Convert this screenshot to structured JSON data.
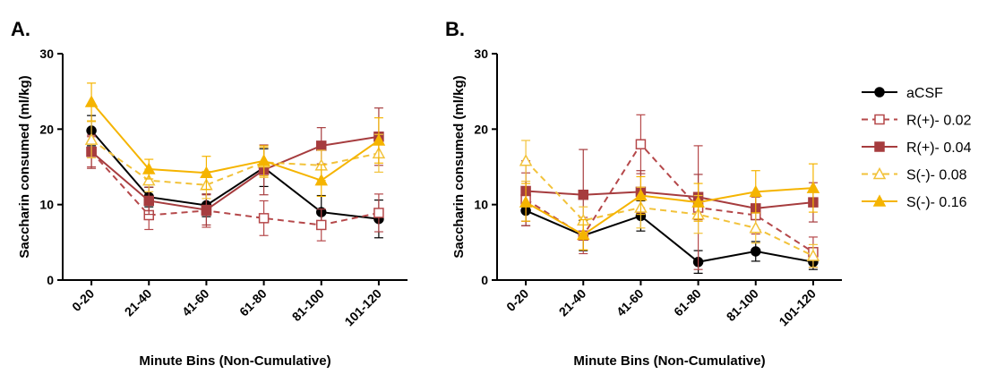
{
  "chart_data": [
    {
      "panel_label": "A.",
      "type": "line",
      "xlabel": "Minute Bins (Non-Cumulative)",
      "ylabel": "Saccharin consumed (ml/kg)",
      "categories": [
        "0-20",
        "21-40",
        "41-60",
        "61-80",
        "81-100",
        "101-120"
      ],
      "ylim": [
        0,
        30
      ],
      "yticks": [
        "0",
        "10",
        "20",
        "30"
      ],
      "grid": false,
      "series": [
        {
          "name": "aCSF",
          "color": "#000000",
          "marker": "circle-filled",
          "dash": "solid",
          "values": [
            19.8,
            11.0,
            9.9,
            14.9,
            9.0,
            8.1
          ],
          "errors": [
            2.0,
            1.3,
            1.5,
            2.5,
            2.2,
            2.5
          ]
        },
        {
          "name": "R(+)- 0.02",
          "color": "#b5484a",
          "marker": "square-open",
          "dash": "dashed",
          "values": [
            17.0,
            8.6,
            9.2,
            8.2,
            7.3,
            8.9
          ],
          "errors": [
            2.0,
            1.9,
            2.2,
            2.3,
            2.1,
            2.5
          ]
        },
        {
          "name": "R(+)- 0.04",
          "color": "#a63c3e",
          "marker": "square-filled",
          "dash": "solid",
          "values": [
            17.0,
            10.5,
            9.3,
            14.6,
            17.8,
            19.0
          ],
          "errors": [
            2.2,
            1.8,
            2.0,
            3.3,
            2.4,
            3.8
          ]
        },
        {
          "name": "S(-)- 0.08",
          "color": "#f2c23a",
          "marker": "triangle-open",
          "dash": "dashed",
          "values": [
            18.6,
            13.2,
            12.6,
            15.6,
            15.2,
            16.8
          ],
          "errors": [
            2.4,
            1.5,
            1.8,
            2.0,
            2.0,
            2.5
          ]
        },
        {
          "name": "S(-)- 0.16",
          "color": "#f5b400",
          "marker": "triangle-filled",
          "dash": "solid",
          "values": [
            23.6,
            14.7,
            14.2,
            15.8,
            13.2,
            18.5
          ],
          "errors": [
            2.5,
            1.3,
            2.2,
            2.0,
            2.1,
            3.0
          ]
        }
      ]
    },
    {
      "panel_label": "B.",
      "type": "line",
      "xlabel": "Minute Bins (Non-Cumulative)",
      "ylabel": "Saccharin consumed (ml/kg)",
      "categories": [
        "0-20",
        "21-40",
        "41-60",
        "61-80",
        "81-100",
        "101-120"
      ],
      "ylim": [
        0,
        30
      ],
      "yticks": [
        "0",
        "10",
        "20",
        "30"
      ],
      "grid": false,
      "series": [
        {
          "name": "aCSF",
          "color": "#000000",
          "marker": "circle-filled",
          "dash": "solid",
          "values": [
            9.2,
            5.9,
            8.5,
            2.4,
            3.8,
            2.4
          ],
          "errors": [
            2.0,
            2.0,
            2.0,
            1.5,
            1.3,
            1.0
          ]
        },
        {
          "name": "R(+)- 0.02",
          "color": "#b5484a",
          "marker": "square-open",
          "dash": "dashed",
          "values": [
            10.7,
            5.9,
            18.0,
            9.6,
            8.6,
            3.7
          ],
          "errors": [
            3.5,
            2.4,
            3.9,
            8.2,
            2.5,
            2.0
          ]
        },
        {
          "name": "R(+)- 0.04",
          "color": "#a63c3e",
          "marker": "square-filled",
          "dash": "solid",
          "values": [
            11.8,
            11.3,
            11.7,
            11.0,
            9.5,
            10.3
          ],
          "errors": [
            4.0,
            6.0,
            2.8,
            3.0,
            1.5,
            2.6
          ]
        },
        {
          "name": "S(-)- 0.08",
          "color": "#f2c23a",
          "marker": "triangle-open",
          "dash": "dashed",
          "values": [
            15.8,
            7.9,
            9.6,
            8.7,
            6.9,
            3.2
          ],
          "errors": [
            2.7,
            1.8,
            2.7,
            2.5,
            2.0,
            1.5
          ]
        },
        {
          "name": "S(-)- 0.16",
          "color": "#f5b400",
          "marker": "triangle-filled",
          "dash": "solid",
          "values": [
            10.3,
            6.0,
            11.2,
            10.3,
            11.7,
            12.2
          ],
          "errors": [
            2.5,
            2.0,
            2.5,
            2.5,
            2.8,
            3.2
          ]
        }
      ]
    }
  ],
  "legend": {
    "placement": "right",
    "items": [
      {
        "name": "aCSF",
        "color": "#000000",
        "marker": "circle-filled",
        "dash": "solid"
      },
      {
        "name": "R(+)- 0.02",
        "color": "#b5484a",
        "marker": "square-open",
        "dash": "dashed"
      },
      {
        "name": "R(+)- 0.04",
        "color": "#a63c3e",
        "marker": "square-filled",
        "dash": "solid"
      },
      {
        "name": "S(-)- 0.08",
        "color": "#f2c23a",
        "marker": "triangle-open",
        "dash": "dashed"
      },
      {
        "name": "S(-)- 0.16",
        "color": "#f5b400",
        "marker": "triangle-filled",
        "dash": "solid"
      }
    ]
  }
}
